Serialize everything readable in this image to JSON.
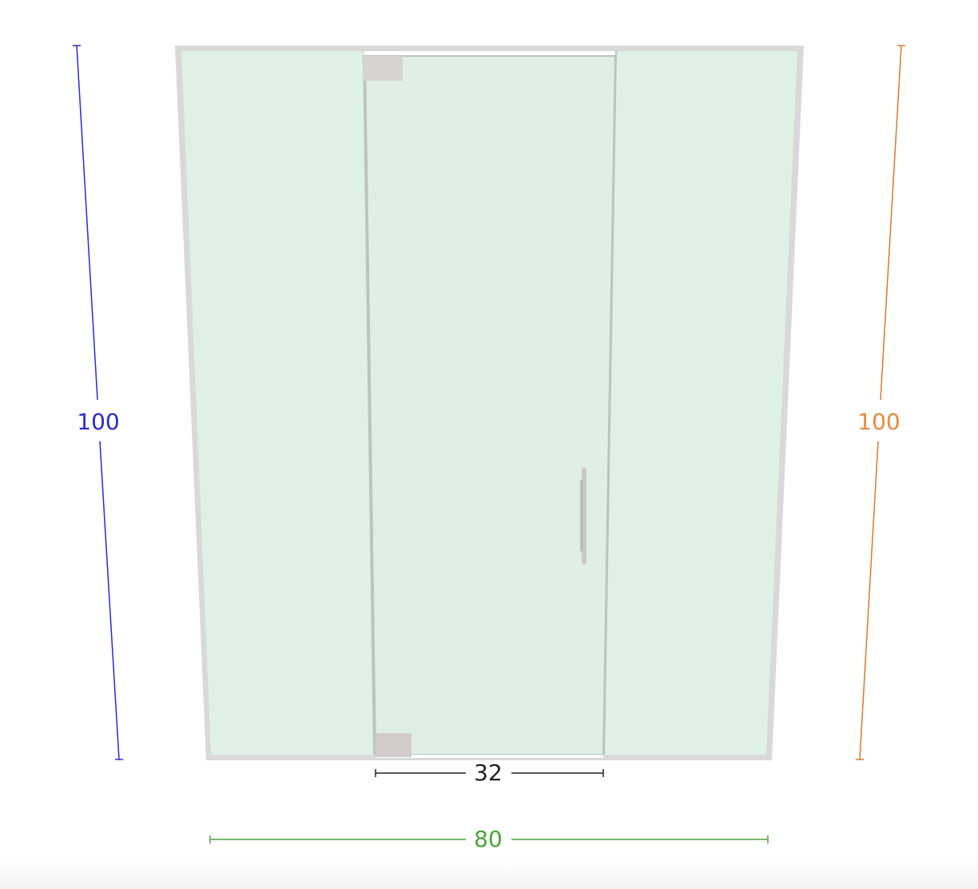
{
  "dimensions": {
    "left_height": {
      "label": "100",
      "color": "#2a2ad0"
    },
    "right_height": {
      "label": "100",
      "color": "#e8893a"
    },
    "door_width": {
      "label": "32",
      "color": "#222222"
    },
    "total_width": {
      "label": "80",
      "color": "#4aa53a"
    }
  },
  "colors": {
    "glass": "#dff0e6",
    "frame": "#d9d9d9",
    "hinge": "#d6d3d3",
    "handle": "#c9c9c9",
    "door_edge": "#b9c4bd"
  },
  "parts": {
    "hinges": 2,
    "handle_icon": "pull-handle-icon"
  }
}
